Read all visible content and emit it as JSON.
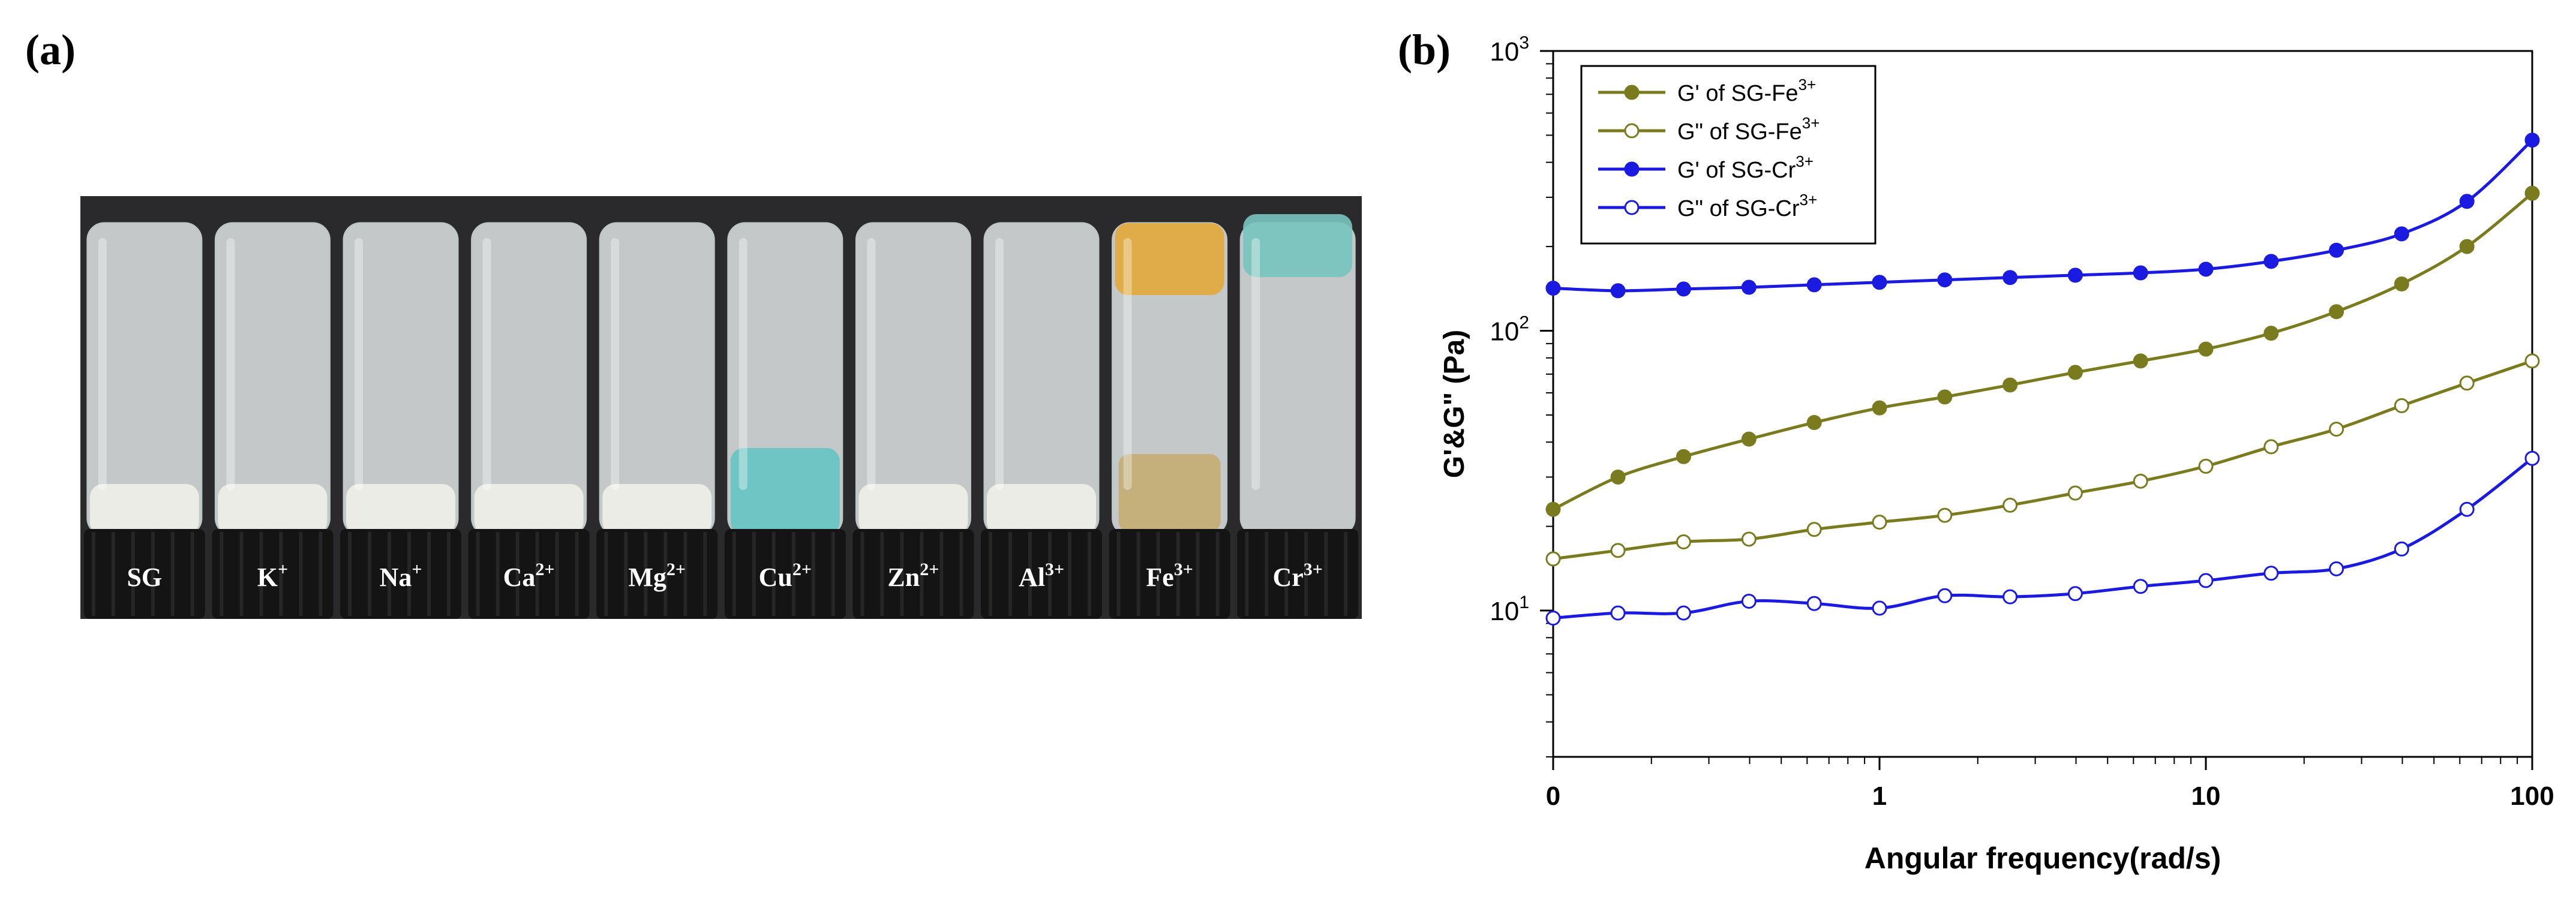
{
  "panel_a": {
    "label": "(a)",
    "vial_labels": [
      "SG",
      "K",
      "Na",
      "Ca",
      "Mg",
      "Cu",
      "Zn",
      "Al",
      "Fe",
      "Cr"
    ],
    "vial_superscripts": [
      "",
      "+",
      "+",
      "2+",
      "2+",
      "2+",
      "2+",
      "3+",
      "3+",
      "3+"
    ],
    "colors": {
      "background": "#2a2a2c",
      "glass": "#e7ecec",
      "gel_white": "#efefe8",
      "cu_blue": "#66c4c2",
      "fe_amber": "#e2a83a",
      "cr_teal": "#78c4be",
      "cap": "#141414"
    }
  },
  "panel_b": {
    "label": "(b)"
  },
  "chart_data": {
    "type": "line",
    "xlabel": "Angular frequency(rad/s)",
    "ylabel": "G'&G\" (Pa)",
    "x_scale": "log",
    "y_scale": "log",
    "xlim": [
      0.1,
      100
    ],
    "ylim": [
      3,
      1000
    ],
    "x_tick_labels": [
      "0",
      "1",
      "10",
      "100"
    ],
    "y_tick_values": [
      10,
      100,
      1000
    ],
    "legend_position": "top-left",
    "x": [
      0.1,
      0.158,
      0.251,
      0.398,
      0.631,
      1,
      1.585,
      2.512,
      3.981,
      6.31,
      10,
      15.85,
      25.12,
      39.81,
      63.1,
      100
    ],
    "series": [
      {
        "name": "G' of SG-Fe",
        "sup": "3+",
        "marker": "filled",
        "color": "#7a7a1f",
        "values": [
          23,
          30,
          35.5,
          41,
          47,
          53,
          58,
          64,
          71,
          78,
          86,
          98,
          117,
          147,
          200,
          310
        ]
      },
      {
        "name": "G\" of SG-Fe",
        "sup": "3+",
        "marker": "open",
        "color": "#7a7a1f",
        "values": [
          15.3,
          16.4,
          17.6,
          18,
          19.5,
          20.7,
          21.9,
          23.8,
          26.3,
          29,
          32.8,
          38.5,
          44.5,
          54,
          65,
          78
        ]
      },
      {
        "name": "G' of SG-Cr",
        "sup": "3+",
        "marker": "filled",
        "color": "#1a1ae0",
        "values": [
          142,
          139,
          141,
          143,
          146,
          149,
          152,
          155,
          158,
          161,
          166,
          177,
          194,
          222,
          290,
          480
        ]
      },
      {
        "name": "G\" of SG-Cr",
        "sup": "3+",
        "marker": "open",
        "color": "#1a1ae0",
        "values": [
          9.4,
          9.8,
          9.8,
          10.8,
          10.6,
          10.2,
          11.3,
          11.2,
          11.5,
          12.2,
          12.8,
          13.6,
          14.1,
          16.6,
          23,
          35
        ]
      }
    ]
  }
}
